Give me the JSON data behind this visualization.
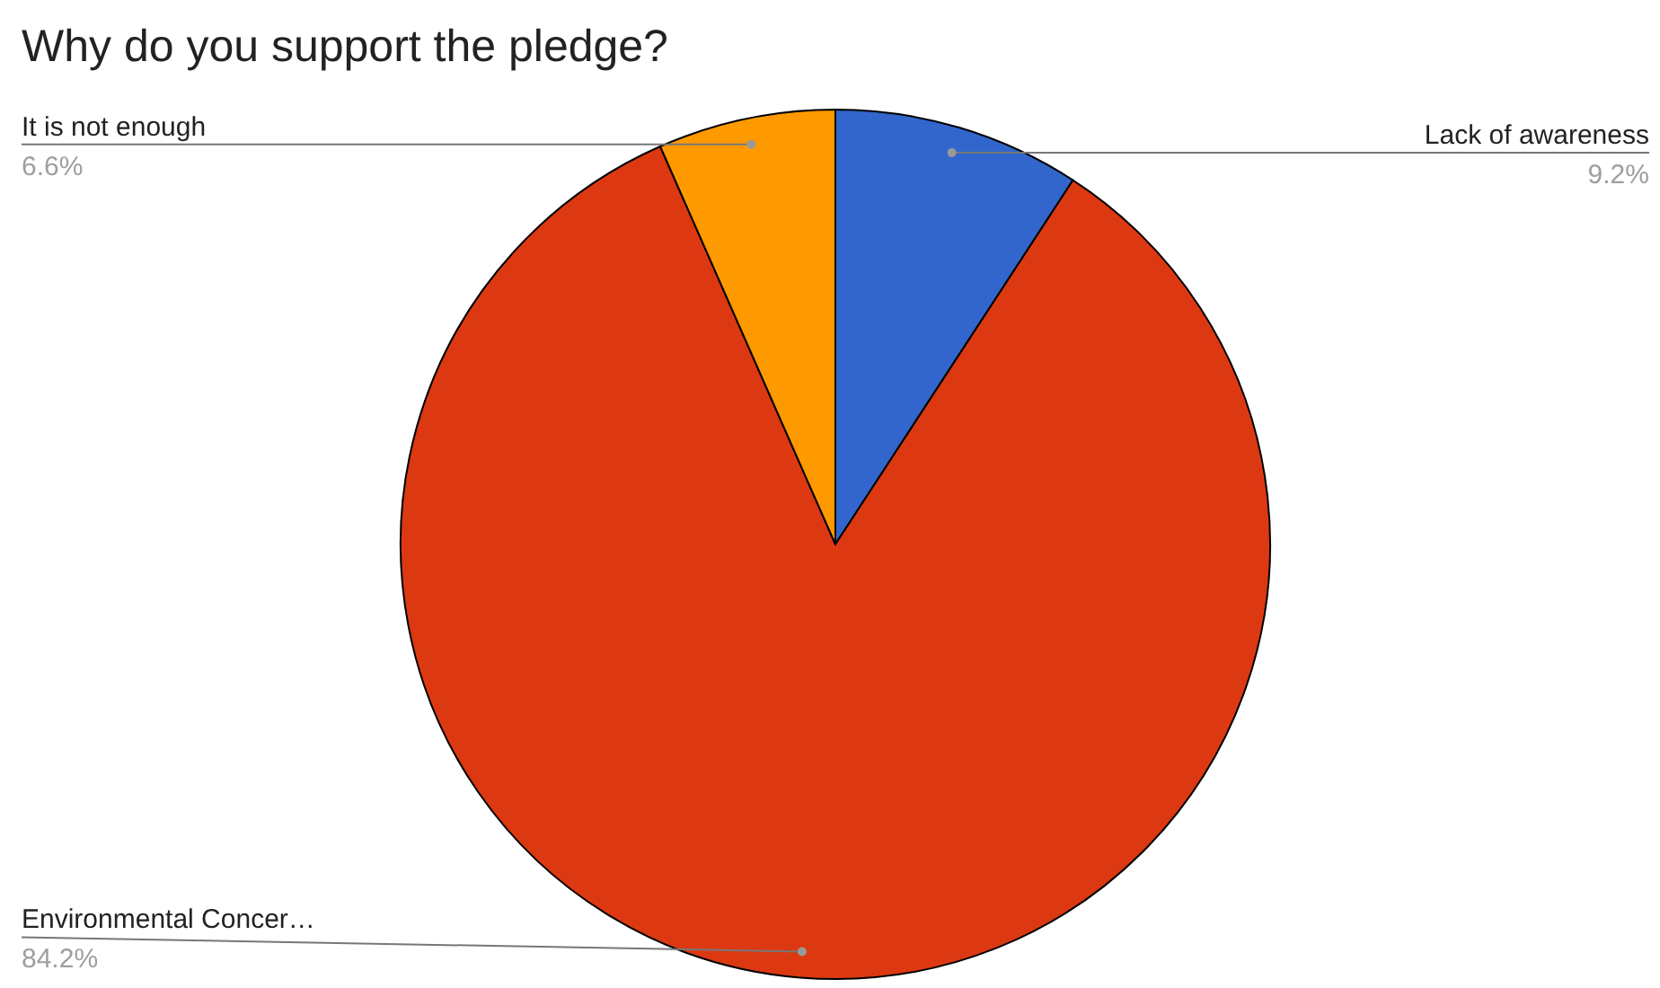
{
  "chart_data": {
    "type": "pie",
    "title": "Why do you support the pledge?",
    "categories": [
      "Lack of awareness",
      "Environmental Concer…",
      "It is not enough"
    ],
    "values": [
      9.2,
      84.2,
      6.6
    ],
    "colors": [
      "#3366cc",
      "#dc3912",
      "#ff9900"
    ],
    "value_labels": [
      "9.2%",
      "84.2%",
      "6.6%"
    ]
  }
}
